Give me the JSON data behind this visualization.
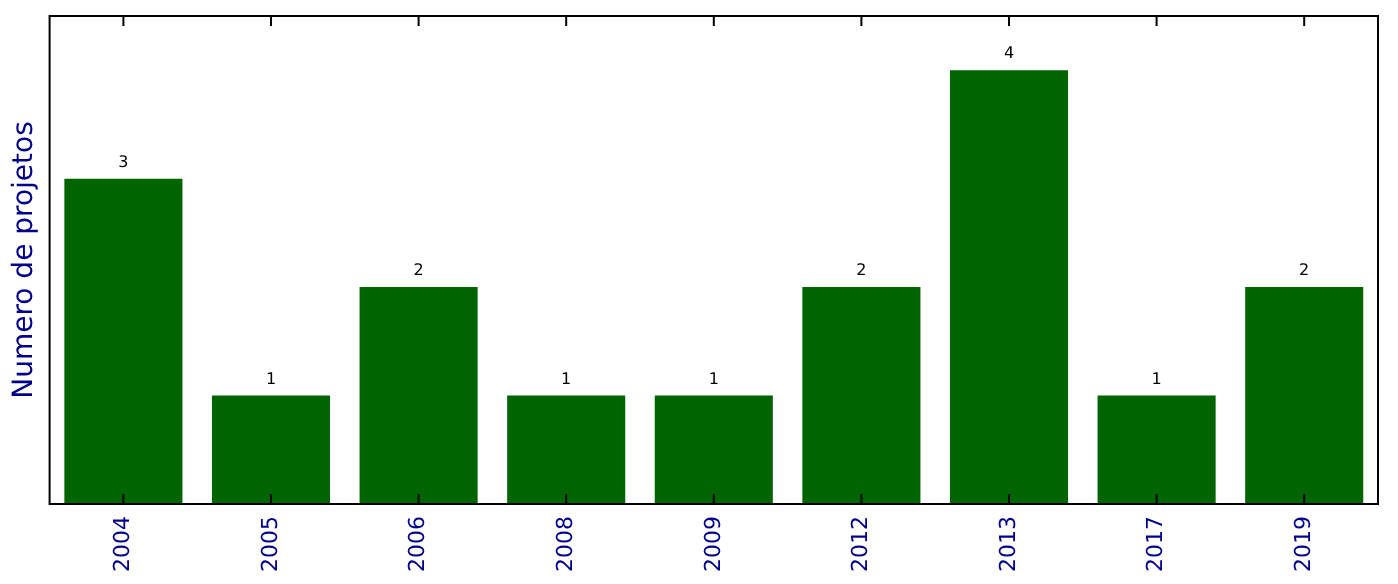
{
  "chart_data": {
    "type": "bar",
    "ylabel": "Numero de projetos",
    "categories": [
      "2004",
      "2005",
      "2006",
      "2008",
      "2009",
      "2012",
      "2013",
      "2017",
      "2019"
    ],
    "values": [
      3,
      1,
      2,
      1,
      1,
      2,
      4,
      1,
      2
    ],
    "color": "#006400",
    "data_labels": true,
    "tick_labels": "x",
    "grid": false,
    "legend": false
  }
}
